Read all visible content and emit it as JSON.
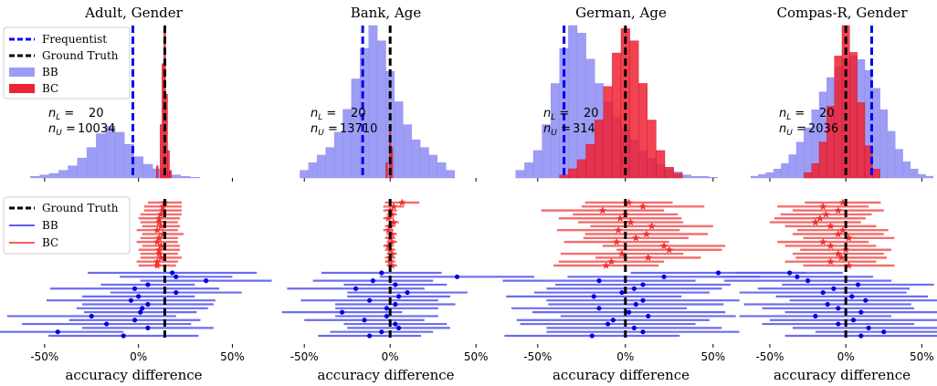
{
  "colors": {
    "frequentist": "#0000ee",
    "ground_truth": "#000000",
    "bb": "#5c5cf0",
    "bc": "#f03030",
    "bb_hist": "#9d9df5",
    "bc_hist": "#ee2233"
  },
  "chart_data": [
    {
      "type": "bar",
      "title": "Adult, Gender",
      "xlabel": "accuracy difference",
      "xlim": [
        -0.65,
        0.6
      ],
      "xticks": [
        "-50%",
        "0%",
        "50%"
      ],
      "n_L": "20",
      "n_U": "10034",
      "frequentist": -0.03,
      "ground_truth": 0.14,
      "bb_hist": [
        [
          -0.55,
          0.01
        ],
        [
          -0.5,
          0.02
        ],
        [
          -0.45,
          0.03
        ],
        [
          -0.4,
          0.05
        ],
        [
          -0.35,
          0.08
        ],
        [
          -0.3,
          0.13
        ],
        [
          -0.25,
          0.2
        ],
        [
          -0.2,
          0.29
        ],
        [
          -0.15,
          0.34
        ],
        [
          -0.1,
          0.3
        ],
        [
          -0.05,
          0.22
        ],
        [
          0,
          0.14
        ],
        [
          0.05,
          0.09
        ],
        [
          0.1,
          0.06
        ],
        [
          0.15,
          0.04
        ],
        [
          0.2,
          0.02
        ],
        [
          0.25,
          0.01
        ],
        [
          0.3,
          0.005
        ]
      ],
      "bc_hist": [
        [
          0.1,
          0.08
        ],
        [
          0.12,
          0.35
        ],
        [
          0.13,
          0.75
        ],
        [
          0.14,
          1.0
        ],
        [
          0.15,
          0.55
        ],
        [
          0.16,
          0.18
        ],
        [
          0.17,
          0.05
        ]
      ],
      "bb_points": [
        0.18,
        0.2,
        0.36,
        0.05,
        -0.02,
        0.2,
        0.0,
        -0.04,
        0.05,
        0.02,
        0.01,
        -0.25,
        -0.02,
        -0.17,
        0.05,
        -0.43,
        -0.08
      ],
      "bb_err": [
        0.45,
        0.3,
        0.35,
        0.25,
        0.45,
        0.35,
        0.3,
        0.45,
        0.35,
        0.35,
        0.3,
        0.45,
        0.35,
        0.45,
        0.35,
        0.35,
        0.4
      ],
      "bc_points": [
        0.14,
        0.13,
        0.13,
        0.12,
        0.11,
        0.11,
        0.12,
        0.1,
        0.13,
        0.11,
        0.1,
        0.12,
        0.11,
        0.11,
        0.12,
        0.1,
        0.1
      ],
      "bc_err": [
        0.09,
        0.1,
        0.1,
        0.11,
        0.11,
        0.1,
        0.1,
        0.11,
        0.11,
        0.1,
        0.11,
        0.1,
        0.11,
        0.1,
        0.11,
        0.11,
        0.1
      ]
    },
    {
      "type": "bar",
      "title": "Bank, Age",
      "xlabel": "accuracy difference",
      "xlim": [
        -0.65,
        0.6
      ],
      "xticks": [
        "-50%",
        "0%",
        "50%"
      ],
      "n_L": "20",
      "n_U": "13710",
      "frequentist": -0.16,
      "ground_truth": 0.0,
      "bb_hist": [
        [
          -0.5,
          0.01
        ],
        [
          -0.45,
          0.02
        ],
        [
          -0.4,
          0.03
        ],
        [
          -0.35,
          0.04
        ],
        [
          -0.3,
          0.06
        ],
        [
          -0.25,
          0.09
        ],
        [
          -0.2,
          0.13
        ],
        [
          -0.15,
          0.17
        ],
        [
          -0.1,
          0.2
        ],
        [
          -0.05,
          0.18
        ],
        [
          0,
          0.14
        ],
        [
          0.05,
          0.1
        ],
        [
          0.1,
          0.07
        ],
        [
          0.15,
          0.05
        ],
        [
          0.2,
          0.04
        ],
        [
          0.25,
          0.03
        ],
        [
          0.3,
          0.02
        ],
        [
          0.35,
          0.01
        ]
      ],
      "bc_hist": [
        [
          -0.02,
          0.02
        ],
        [
          0,
          0.06
        ],
        [
          0.01,
          0.04
        ]
      ],
      "bb_points": [
        -0.05,
        0.39,
        -0.1,
        0.03,
        -0.2,
        0.1,
        0.05,
        -0.12,
        0.03,
        -0.02,
        -0.28,
        -0.02,
        -0.15,
        0.03,
        0.05,
        -0.05,
        -0.12
      ],
      "bb_err": [
        0.35,
        0.45,
        0.35,
        0.3,
        0.4,
        0.35,
        0.3,
        0.4,
        0.35,
        0.3,
        0.35,
        0.3,
        0.35,
        0.3,
        0.3,
        0.3,
        0.3
      ],
      "bc_points": [
        0.07,
        0.02,
        0.0,
        0.01,
        -0.01,
        0.02,
        0.0,
        -0.01,
        0.01,
        0.0,
        0.01,
        -0.01,
        0.0,
        0.01,
        0.0,
        0.0,
        0.01
      ],
      "bc_err": [
        0.1,
        0.06,
        0.04,
        0.03,
        0.03,
        0.03,
        0.03,
        0.03,
        0.03,
        0.03,
        0.03,
        0.03,
        0.03,
        0.03,
        0.03,
        0.03,
        0.03
      ]
    },
    {
      "type": "bar",
      "title": "German, Age",
      "xlabel": "accuracy difference",
      "xlim": [
        -0.65,
        0.6
      ],
      "xticks": [
        "-50%",
        "0%",
        "50%"
      ],
      "n_L": "20",
      "n_U": "314",
      "frequentist": -0.35,
      "ground_truth": 0.0,
      "bb_hist": [
        [
          -0.6,
          0.05
        ],
        [
          -0.55,
          0.1
        ],
        [
          -0.5,
          0.18
        ],
        [
          -0.45,
          0.35
        ],
        [
          -0.4,
          0.62
        ],
        [
          -0.35,
          0.85
        ],
        [
          -0.3,
          1.0
        ],
        [
          -0.25,
          0.95
        ],
        [
          -0.2,
          0.78
        ],
        [
          -0.15,
          0.62
        ],
        [
          -0.1,
          0.5
        ],
        [
          -0.05,
          0.4
        ],
        [
          0,
          0.32
        ],
        [
          0.05,
          0.25
        ],
        [
          0.1,
          0.18
        ],
        [
          0.15,
          0.13
        ],
        [
          0.2,
          0.09
        ],
        [
          0.25,
          0.06
        ],
        [
          0.3,
          0.04
        ],
        [
          0.35,
          0.02
        ],
        [
          0.4,
          0.01
        ],
        [
          0.45,
          0.01
        ],
        [
          0.5,
          0.005
        ]
      ],
      "bc_hist": [
        [
          -0.35,
          0.02
        ],
        [
          -0.3,
          0.06
        ],
        [
          -0.25,
          0.12
        ],
        [
          -0.2,
          0.22
        ],
        [
          -0.15,
          0.38
        ],
        [
          -0.1,
          0.6
        ],
        [
          -0.05,
          0.82
        ],
        [
          0,
          0.98
        ],
        [
          0.05,
          0.9
        ],
        [
          0.1,
          0.62
        ],
        [
          0.15,
          0.38
        ],
        [
          0.2,
          0.18
        ],
        [
          0.25,
          0.07
        ],
        [
          0.3,
          0.03
        ]
      ],
      "bb_points": [
        0.53,
        0.22,
        -0.15,
        0.1,
        0.05,
        -0.02,
        -0.18,
        0.1,
        0.06,
        -0.15,
        0.02,
        0.13,
        -0.07,
        -0.1,
        0.05,
        0.1,
        -0.19
      ],
      "bb_err": [
        0.5,
        0.55,
        0.55,
        0.5,
        0.5,
        0.5,
        0.5,
        0.55,
        0.5,
        0.5,
        0.55,
        0.5,
        0.55,
        0.5,
        0.5,
        0.55,
        0.5
      ],
      "bc_points": [
        0.02,
        0.1,
        -0.13,
        0.0,
        -0.03,
        0.03,
        0.15,
        -0.04,
        0.12,
        0.06,
        -0.05,
        0.22,
        0.25,
        -0.02,
        0.13,
        -0.08,
        -0.11
      ],
      "bc_err": [
        0.25,
        0.35,
        0.35,
        0.3,
        0.35,
        0.3,
        0.35,
        0.35,
        0.35,
        0.3,
        0.3,
        0.35,
        0.3,
        0.35,
        0.3,
        0.3,
        0.3
      ]
    },
    {
      "type": "bar",
      "title": "Compas-R, Gender",
      "xlabel": "accuracy difference",
      "xlim": [
        -0.65,
        0.6
      ],
      "xticks": [
        "-50%",
        "0%",
        "50%"
      ],
      "n_L": "20",
      "n_U": "2036",
      "frequentist": 0.17,
      "ground_truth": 0.0,
      "bb_hist": [
        [
          -0.6,
          0.01
        ],
        [
          -0.55,
          0.02
        ],
        [
          -0.5,
          0.03
        ],
        [
          -0.45,
          0.05
        ],
        [
          -0.4,
          0.08
        ],
        [
          -0.35,
          0.13
        ],
        [
          -0.3,
          0.2
        ],
        [
          -0.25,
          0.28
        ],
        [
          -0.2,
          0.38
        ],
        [
          -0.15,
          0.48
        ],
        [
          -0.1,
          0.56
        ],
        [
          -0.05,
          0.62
        ],
        [
          0,
          0.66
        ],
        [
          0.05,
          0.68
        ],
        [
          0.1,
          0.66
        ],
        [
          0.15,
          0.6
        ],
        [
          0.2,
          0.5
        ],
        [
          0.25,
          0.38
        ],
        [
          0.3,
          0.26
        ],
        [
          0.35,
          0.16
        ],
        [
          0.4,
          0.09
        ],
        [
          0.45,
          0.05
        ],
        [
          0.5,
          0.02
        ],
        [
          0.55,
          0.01
        ]
      ],
      "bc_hist": [
        [
          -0.25,
          0.03
        ],
        [
          -0.2,
          0.08
        ],
        [
          -0.15,
          0.2
        ],
        [
          -0.1,
          0.4
        ],
        [
          -0.05,
          0.68
        ],
        [
          0,
          0.85
        ],
        [
          0.05,
          0.7
        ],
        [
          0.1,
          0.42
        ],
        [
          0.15,
          0.18
        ],
        [
          0.2,
          0.05
        ]
      ],
      "bb_points": [
        -0.37,
        -0.32,
        -0.25,
        0.08,
        -0.08,
        -0.15,
        0.04,
        0.13,
        -0.12,
        -0.05,
        0.1,
        -0.2,
        0.05,
        -0.05,
        0.15,
        0.25,
        0.1
      ],
      "bb_err": [
        0.35,
        0.5,
        0.55,
        0.5,
        0.5,
        0.55,
        0.5,
        0.5,
        0.55,
        0.5,
        0.5,
        0.5,
        0.55,
        0.5,
        0.5,
        0.45,
        0.5
      ],
      "bc_points": [
        -0.02,
        -0.15,
        -0.05,
        -0.13,
        -0.17,
        -0.2,
        -0.1,
        -0.02,
        -0.05,
        0.02,
        -0.15,
        -0.1,
        0.0,
        -0.05,
        -0.03,
        -0.1,
        0.02
      ],
      "bc_err": [
        0.25,
        0.3,
        0.3,
        0.3,
        0.3,
        0.3,
        0.3,
        0.3,
        0.3,
        0.3,
        0.3,
        0.3,
        0.3,
        0.3,
        0.3,
        0.3,
        0.3
      ]
    }
  ],
  "legend_top": {
    "frequentist": "Frequentist",
    "ground_truth": "Ground Truth",
    "bb": "BB",
    "bc": "BC"
  },
  "legend_bottom": {
    "ground_truth": "Ground Truth",
    "bb": "BB",
    "bc": "BC"
  }
}
